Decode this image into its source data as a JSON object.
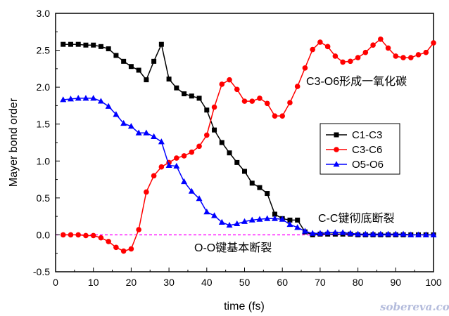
{
  "chart_data": {
    "type": "line",
    "xlabel": "time (fs)",
    "ylabel": "Mayer bond order",
    "xlim": [
      0,
      100
    ],
    "ylim": [
      -0.5,
      3.0
    ],
    "x_ticks": [
      "0",
      "10",
      "20",
      "30",
      "40",
      "50",
      "60",
      "70",
      "80",
      "90",
      "100"
    ],
    "y_ticks": [
      "-0.5",
      "0.0",
      "0.5",
      "1.0",
      "1.5",
      "2.0",
      "2.5",
      "3.0"
    ],
    "grid": false,
    "legend_position": "center-right",
    "reference_line": {
      "y": 0.0,
      "color": "#ff00ff",
      "style": "dashed"
    },
    "series": [
      {
        "name": "C1-C3",
        "color": "#000000",
        "marker": "square",
        "x": [
          2,
          4,
          6,
          8,
          10,
          12,
          14,
          16,
          18,
          20,
          22,
          24,
          26,
          28,
          30,
          32,
          34,
          36,
          38,
          40,
          42,
          44,
          46,
          48,
          50,
          52,
          54,
          56,
          58,
          60,
          62,
          64,
          66,
          68,
          70,
          72,
          74,
          76,
          78,
          80,
          82,
          84,
          86,
          88,
          90,
          92,
          94,
          96,
          98,
          100
        ],
        "y": [
          2.58,
          2.58,
          2.58,
          2.57,
          2.57,
          2.55,
          2.52,
          2.43,
          2.35,
          2.28,
          2.23,
          2.1,
          2.35,
          2.58,
          2.11,
          1.99,
          1.91,
          1.88,
          1.85,
          1.69,
          1.42,
          1.25,
          1.11,
          0.98,
          0.86,
          0.7,
          0.64,
          0.56,
          0.28,
          0.22,
          0.2,
          0.2,
          0.04,
          0.0,
          0.01,
          0.01,
          0.01,
          0.01,
          0.01,
          0.0,
          0.0,
          0.0,
          0.0,
          0.0,
          0.0,
          0.0,
          0.0,
          0.0,
          0.0,
          0.0
        ]
      },
      {
        "name": "C3-C6",
        "color": "#ff0000",
        "marker": "circle",
        "x": [
          2,
          4,
          6,
          8,
          10,
          12,
          14,
          16,
          18,
          20,
          22,
          24,
          26,
          28,
          30,
          32,
          34,
          36,
          38,
          40,
          42,
          44,
          46,
          48,
          50,
          52,
          54,
          56,
          58,
          60,
          62,
          64,
          66,
          68,
          70,
          72,
          74,
          76,
          78,
          80,
          82,
          84,
          86,
          88,
          90,
          92,
          94,
          96,
          98,
          100
        ],
        "y": [
          0.0,
          0.0,
          0.0,
          -0.01,
          -0.01,
          -0.04,
          -0.09,
          -0.17,
          -0.22,
          -0.19,
          0.07,
          0.58,
          0.8,
          0.92,
          0.98,
          1.04,
          1.07,
          1.12,
          1.2,
          1.35,
          1.73,
          2.04,
          2.1,
          1.97,
          1.81,
          1.81,
          1.85,
          1.78,
          1.61,
          1.61,
          1.79,
          2.01,
          2.26,
          2.51,
          2.61,
          2.55,
          2.42,
          2.34,
          2.35,
          2.4,
          2.47,
          2.57,
          2.65,
          2.53,
          2.42,
          2.4,
          2.4,
          2.44,
          2.47,
          2.6
        ]
      },
      {
        "name": "O5-O6",
        "color": "#0000ff",
        "marker": "triangle",
        "x": [
          2,
          4,
          6,
          8,
          10,
          12,
          14,
          16,
          18,
          20,
          22,
          24,
          26,
          28,
          30,
          32,
          34,
          36,
          38,
          40,
          42,
          44,
          46,
          48,
          50,
          52,
          54,
          56,
          58,
          60,
          62,
          64,
          66,
          68,
          70,
          72,
          74,
          76,
          78,
          80,
          82,
          84,
          86,
          88,
          90,
          92,
          94,
          96,
          98,
          100
        ],
        "y": [
          1.83,
          1.84,
          1.85,
          1.85,
          1.85,
          1.81,
          1.74,
          1.63,
          1.51,
          1.47,
          1.38,
          1.38,
          1.33,
          1.26,
          0.94,
          0.93,
          0.72,
          0.59,
          0.49,
          0.31,
          0.26,
          0.17,
          0.13,
          0.15,
          0.18,
          0.2,
          0.21,
          0.22,
          0.22,
          0.21,
          0.14,
          0.1,
          0.05,
          0.02,
          0.02,
          0.03,
          0.03,
          0.03,
          0.02,
          0.01,
          0.01,
          0.01,
          0.01,
          0.01,
          0.01,
          0.01,
          0.0,
          0.0,
          0.0,
          0.0
        ]
      }
    ],
    "annotations": [
      {
        "text": "C3-O6形成一氧化碳"
      },
      {
        "text": "C-C键彻底断裂"
      },
      {
        "text": "O-O键基本断裂"
      }
    ]
  },
  "watermark": {
    "text": "sobereva.com"
  }
}
